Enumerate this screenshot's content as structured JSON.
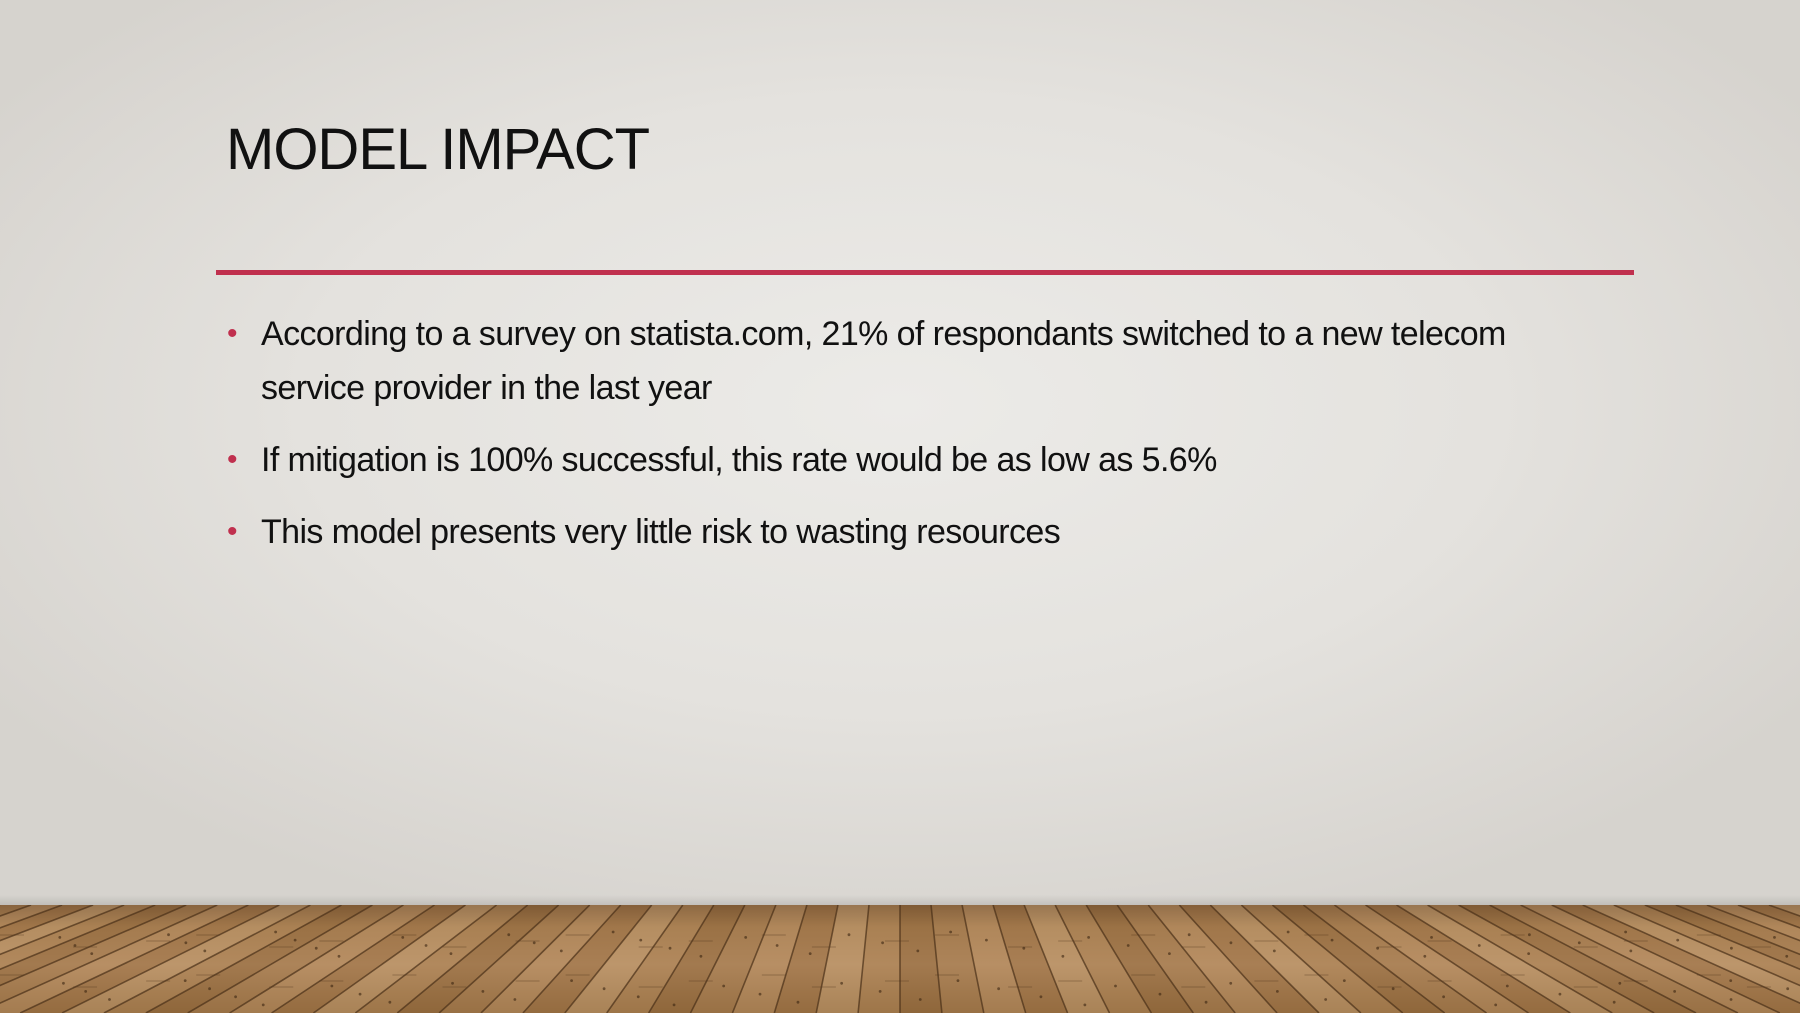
{
  "slide": {
    "title": "MODEL IMPACT",
    "accent_color": "#c0304e",
    "bullets": [
      "According to a survey on statista.com, 21% of respondants switched to a new telecom service provider in the last year",
      "If mitigation is 100% successful, this rate would be as low as 5.6%",
      "This model presents very little risk to wasting resources"
    ]
  }
}
